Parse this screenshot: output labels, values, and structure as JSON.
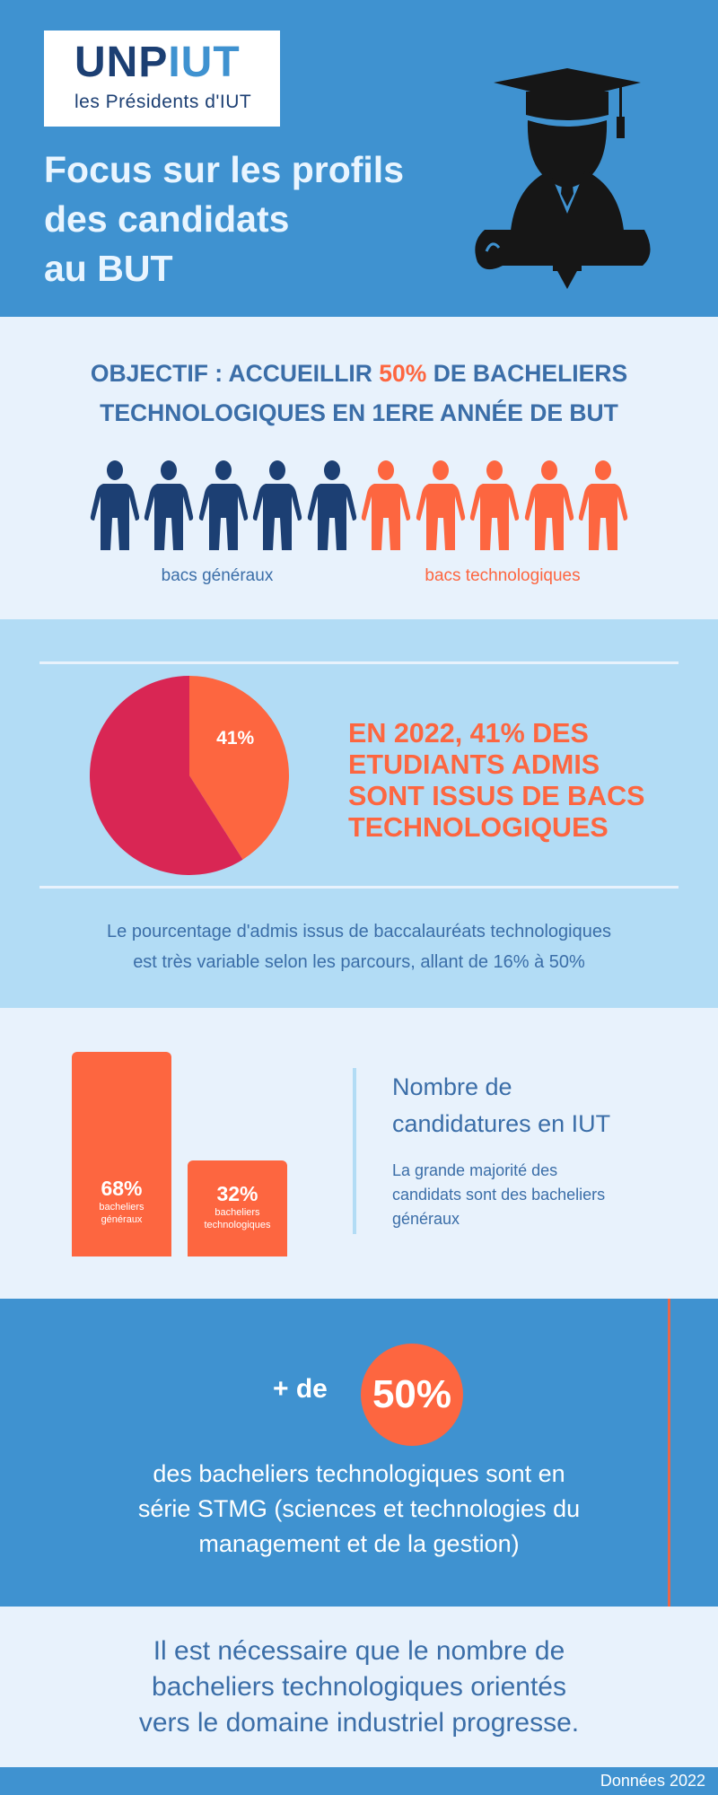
{
  "header": {
    "logo_text": "UNPIUT",
    "logo_subtitle": "les Présidents d'IUT",
    "title_lines": [
      "Focus sur les profils",
      "des candidats",
      "au BUT"
    ],
    "icon": "graduate-with-diploma-icon"
  },
  "objective": {
    "line1_pre": "OBJECTIF : ACCUEILLIR ",
    "line1_highlight": "50%",
    "line1_post": " DE BACHELIERS",
    "line2": "TECHNOLOGIQUES EN 1ERE ANNÉE DE BUT",
    "people_general": 5,
    "people_techno": 5,
    "label_general": "bacs généraux",
    "label_techno": "bacs technologiques",
    "icon": "person-icon"
  },
  "admis": {
    "pie_label": "41%",
    "headline_lines": [
      "EN 2022, 41% DES",
      "ETUDIANTS ADMIS",
      "SONT ISSUS DE BACS",
      "TECHNOLOGIQUES"
    ],
    "note_lines": [
      "Le pourcentage d'admis issus de baccalauréats technologiques",
      "est très variable selon les parcours, allant de 16% à 50%"
    ]
  },
  "candidatures": {
    "title_lines": [
      "Nombre de",
      "candidatures en IUT"
    ],
    "body_lines": [
      "La grande majorité des",
      "candidats sont des bacheliers",
      "généraux"
    ]
  },
  "stmg": {
    "prefix": "+ de",
    "value": "50%",
    "lines": [
      "des bacheliers technologiques sont en",
      "série STMG (sciences et technologies du",
      "management et de la gestion)"
    ]
  },
  "conclusion": {
    "lines": [
      "Il est nécessaire que le nombre de",
      "bacheliers technologiques orientés",
      "vers le domaine industriel progresse."
    ]
  },
  "footer": {
    "text": "Données 2022"
  },
  "colors": {
    "blue": "#3f92d0",
    "navy": "#1c3f73",
    "orange": "#fd6640",
    "crimson": "#d92654",
    "text_blue": "#3b6ea8"
  },
  "chart_data": [
    {
      "type": "pie",
      "values": [
        41,
        59
      ],
      "labels": [
        "41%",
        ""
      ],
      "colors": [
        "#fd6640",
        "#d92654"
      ]
    },
    {
      "type": "bar",
      "categories": [
        "bacheliers généraux",
        "bacheliers technologiques"
      ],
      "values": [
        68,
        32
      ],
      "value_labels": [
        "68%",
        "32%"
      ]
    }
  ]
}
